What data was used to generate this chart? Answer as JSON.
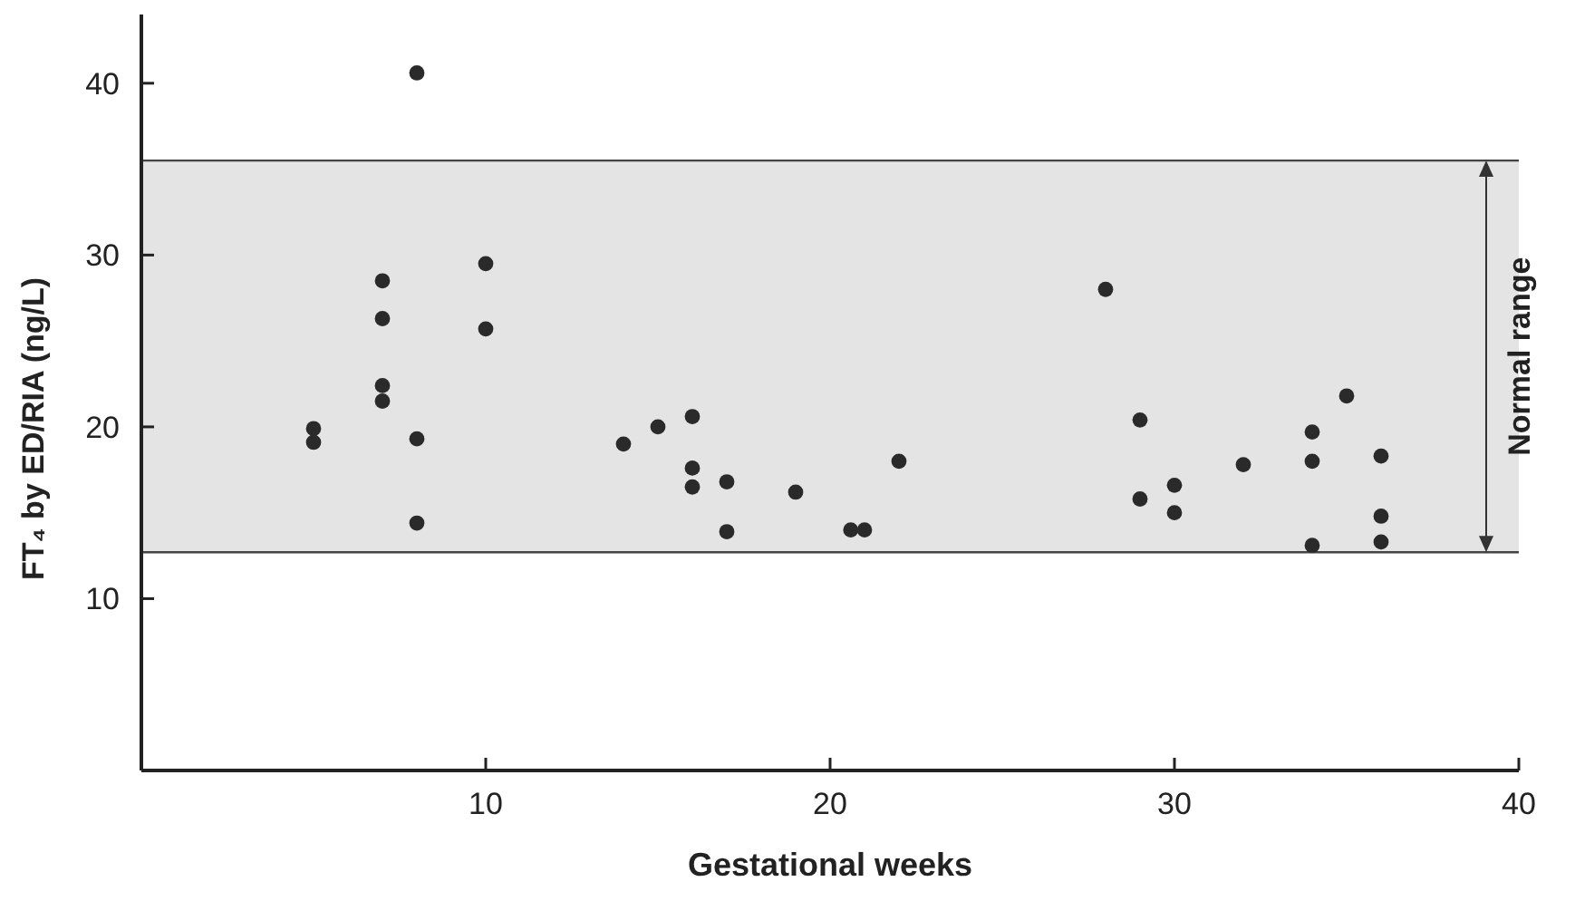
{
  "chart_data": {
    "type": "scatter",
    "xlabel": "Gestational weeks",
    "ylabel": "FT₄ by ED/RIA (ng/L)",
    "x": [
      5,
      5,
      7,
      7,
      7,
      7,
      8,
      8,
      8,
      10,
      10,
      14,
      15,
      16,
      16,
      16,
      17,
      17,
      19,
      20.6,
      21,
      22,
      28,
      29,
      29,
      30,
      30,
      32,
      34,
      34,
      34,
      35,
      36,
      36,
      36
    ],
    "values": [
      19.9,
      19.1,
      28.5,
      26.3,
      22.4,
      21.5,
      40.6,
      19.3,
      14.4,
      29.5,
      25.7,
      19.0,
      20.0,
      20.6,
      17.6,
      16.5,
      16.8,
      13.9,
      16.2,
      14.0,
      14.0,
      18.0,
      28.0,
      20.4,
      15.8,
      16.6,
      15.0,
      17.8,
      19.7,
      18.0,
      13.1,
      21.8,
      18.3,
      14.8,
      13.3
    ],
    "color": "#2a2a2a",
    "marker": "circle",
    "xlim": [
      0,
      40
    ],
    "xticks": [
      10,
      20,
      30,
      40
    ],
    "ylim": [
      0,
      44
    ],
    "yticks": [
      10,
      20,
      30,
      40
    ],
    "bands": [
      {
        "axis": "y",
        "from": 12.7,
        "to": 35.5,
        "label": "Normal range",
        "color": "#e4e4e4"
      }
    ]
  }
}
